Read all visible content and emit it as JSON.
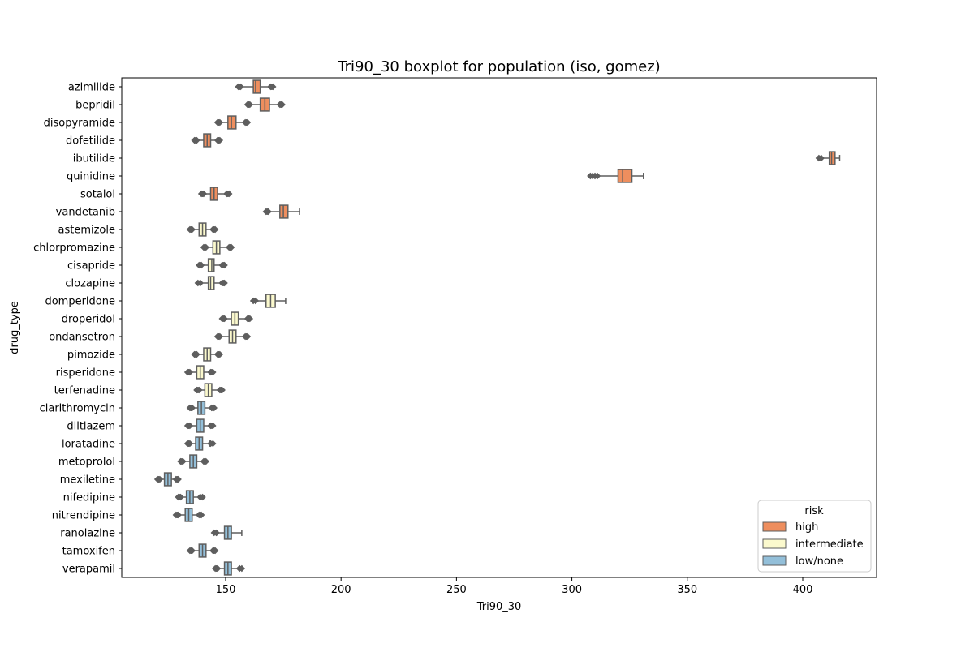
{
  "chart_data": {
    "type": "boxplot",
    "orientation": "horizontal",
    "title": "Tri90_30 boxplot for population (iso, gomez)",
    "xlabel": "Tri90_30",
    "ylabel": "drug_type",
    "xlim": [
      105,
      432
    ],
    "xticks": [
      150,
      200,
      250,
      300,
      350,
      400
    ],
    "grid": false,
    "legend": {
      "title": "risk",
      "placement": "lower right",
      "entries": [
        {
          "key": "high",
          "label": "high",
          "color": "#ee8e5e"
        },
        {
          "key": "intermediate",
          "label": "intermediate",
          "color": "#fbf9cd"
        },
        {
          "key": "low",
          "label": "low/none",
          "color": "#93bfd9"
        }
      ]
    },
    "series": [
      {
        "drug": "azimilide",
        "risk": "high",
        "whisker_low": 156,
        "q1": 162,
        "median": 163,
        "q3": 165,
        "whisker_high": 170,
        "outliers_low": [
          155.5,
          156.5
        ],
        "outliers_high": [
          169.5,
          170.5
        ]
      },
      {
        "drug": "bepridil",
        "risk": "high",
        "whisker_low": 160,
        "q1": 165,
        "median": 167,
        "q3": 169,
        "whisker_high": 174,
        "outliers_low": [
          159.5,
          160.5
        ],
        "outliers_high": [
          173.5,
          174.5
        ]
      },
      {
        "drug": "disopyramide",
        "risk": "high",
        "whisker_low": 147,
        "q1": 151,
        "median": 152.5,
        "q3": 154.5,
        "whisker_high": 159,
        "outliers_low": [
          146.5,
          147.5
        ],
        "outliers_high": [
          158.5,
          159.5
        ]
      },
      {
        "drug": "dofetilide",
        "risk": "high",
        "whisker_low": 137,
        "q1": 140.5,
        "median": 142,
        "q3": 143.5,
        "whisker_high": 147,
        "outliers_low": [
          136.5,
          137.5
        ],
        "outliers_high": [
          146.5,
          147.5
        ]
      },
      {
        "drug": "ibutilide",
        "risk": "high",
        "whisker_low": 408,
        "q1": 411.5,
        "median": 412.5,
        "q3": 414,
        "whisker_high": 416,
        "outliers_low": [
          407,
          408
        ],
        "outliers_high": []
      },
      {
        "drug": "quinidine",
        "risk": "high",
        "whisker_low": 311,
        "q1": 320,
        "median": 322,
        "q3": 326,
        "whisker_high": 331,
        "outliers_low": [
          308,
          309,
          310,
          311
        ],
        "outliers_high": []
      },
      {
        "drug": "sotalol",
        "risk": "high",
        "whisker_low": 140,
        "q1": 143.5,
        "median": 145,
        "q3": 146.5,
        "whisker_high": 151,
        "outliers_low": [
          139.5,
          140.5
        ],
        "outliers_high": [
          150.5,
          151.5
        ]
      },
      {
        "drug": "vandetanib",
        "risk": "high",
        "whisker_low": 168,
        "q1": 173.5,
        "median": 175,
        "q3": 177,
        "whisker_high": 182,
        "outliers_low": [
          167.5,
          168.5
        ],
        "outliers_high": []
      },
      {
        "drug": "astemizole",
        "risk": "intermediate",
        "whisker_low": 135,
        "q1": 138.5,
        "median": 140,
        "q3": 141.5,
        "whisker_high": 145,
        "outliers_low": [
          134.5,
          135.5
        ],
        "outliers_high": [
          144.5,
          145.5
        ]
      },
      {
        "drug": "chlorpromazine",
        "risk": "intermediate",
        "whisker_low": 141,
        "q1": 144.5,
        "median": 146,
        "q3": 147.5,
        "whisker_high": 152,
        "outliers_low": [
          140.5,
          141.5
        ],
        "outliers_high": [
          151.5,
          152.5
        ]
      },
      {
        "drug": "cisapride",
        "risk": "intermediate",
        "whisker_low": 139,
        "q1": 142.5,
        "median": 144,
        "q3": 145,
        "whisker_high": 149,
        "outliers_low": [
          138.5,
          139.5
        ],
        "outliers_high": [
          148.5,
          149.5
        ]
      },
      {
        "drug": "clozapine",
        "risk": "intermediate",
        "whisker_low": 139,
        "q1": 142.5,
        "median": 143.5,
        "q3": 145,
        "whisker_high": 149,
        "outliers_low": [
          138,
          139
        ],
        "outliers_high": [
          148.5,
          149.5
        ]
      },
      {
        "drug": "domperidone",
        "risk": "intermediate",
        "whisker_low": 163,
        "q1": 167.5,
        "median": 169.5,
        "q3": 171.5,
        "whisker_high": 176,
        "outliers_low": [
          162,
          163
        ],
        "outliers_high": []
      },
      {
        "drug": "droperidol",
        "risk": "intermediate",
        "whisker_low": 149,
        "q1": 152.5,
        "median": 154,
        "q3": 155.5,
        "whisker_high": 160,
        "outliers_low": [
          148.5,
          149.5
        ],
        "outliers_high": [
          159.5,
          160.5
        ]
      },
      {
        "drug": "ondansetron",
        "risk": "intermediate",
        "whisker_low": 147,
        "q1": 151.5,
        "median": 153,
        "q3": 154.5,
        "whisker_high": 159,
        "outliers_low": [
          146.5,
          147.5
        ],
        "outliers_high": [
          158.5,
          159.5
        ]
      },
      {
        "drug": "pimozide",
        "risk": "intermediate",
        "whisker_low": 137,
        "q1": 140.5,
        "median": 142,
        "q3": 143.5,
        "whisker_high": 147,
        "outliers_low": [
          136.5,
          137.5
        ],
        "outliers_high": [
          146.5,
          147.5
        ]
      },
      {
        "drug": "risperidone",
        "risk": "intermediate",
        "whisker_low": 134,
        "q1": 137.5,
        "median": 139,
        "q3": 140.5,
        "whisker_high": 144,
        "outliers_low": [
          133.5,
          134.5
        ],
        "outliers_high": [
          143.5,
          144.5
        ]
      },
      {
        "drug": "terfenadine",
        "risk": "intermediate",
        "whisker_low": 138,
        "q1": 141,
        "median": 142.5,
        "q3": 144,
        "whisker_high": 148,
        "outliers_low": [
          137.5,
          138.5
        ],
        "outliers_high": [
          147.5,
          148.5
        ]
      },
      {
        "drug": "clarithromycin",
        "risk": "low",
        "whisker_low": 135,
        "q1": 138,
        "median": 139.5,
        "q3": 141,
        "whisker_high": 144,
        "outliers_low": [
          134.5,
          135.5
        ],
        "outliers_high": [
          144,
          145
        ]
      },
      {
        "drug": "diltiazem",
        "risk": "low",
        "whisker_low": 134,
        "q1": 137.5,
        "median": 139,
        "q3": 140.5,
        "whisker_high": 144,
        "outliers_low": [
          133.5,
          134.5
        ],
        "outliers_high": [
          143.5,
          144.5
        ]
      },
      {
        "drug": "loratadine",
        "risk": "low",
        "whisker_low": 134,
        "q1": 137,
        "median": 138.5,
        "q3": 140,
        "whisker_high": 143,
        "outliers_low": [
          133.5,
          134.5
        ],
        "outliers_high": [
          143.5,
          144.5
        ]
      },
      {
        "drug": "metoprolol",
        "risk": "low",
        "whisker_low": 131,
        "q1": 134.5,
        "median": 136,
        "q3": 137.5,
        "whisker_high": 141,
        "outliers_low": [
          130.5,
          131.5
        ],
        "outliers_high": [
          140.5,
          141.5
        ]
      },
      {
        "drug": "mexiletine",
        "risk": "low",
        "whisker_low": 121,
        "q1": 123.5,
        "median": 125,
        "q3": 126.5,
        "whisker_high": 129,
        "outliers_low": [
          120.5,
          121.5
        ],
        "outliers_high": [
          128.5,
          129.5
        ]
      },
      {
        "drug": "nifedipine",
        "risk": "low",
        "whisker_low": 130,
        "q1": 133,
        "median": 134.5,
        "q3": 136,
        "whisker_high": 139,
        "outliers_low": [
          129.5,
          130.5
        ],
        "outliers_high": [
          139,
          140
        ]
      },
      {
        "drug": "nitrendipine",
        "risk": "low",
        "whisker_low": 129,
        "q1": 132.5,
        "median": 134,
        "q3": 135.5,
        "whisker_high": 139,
        "outliers_low": [
          128.5,
          129.5
        ],
        "outliers_high": [
          138.5,
          139.5
        ]
      },
      {
        "drug": "ranolazine",
        "risk": "low",
        "whisker_low": 146,
        "q1": 149.5,
        "median": 151,
        "q3": 152.5,
        "whisker_high": 157,
        "outliers_low": [
          145,
          146
        ],
        "outliers_high": []
      },
      {
        "drug": "tamoxifen",
        "risk": "low",
        "whisker_low": 135,
        "q1": 138.5,
        "median": 140,
        "q3": 141.5,
        "whisker_high": 145,
        "outliers_low": [
          134.5,
          135.5
        ],
        "outliers_high": [
          144.5,
          145.5
        ]
      },
      {
        "drug": "verapamil",
        "risk": "low",
        "whisker_low": 146,
        "q1": 149.5,
        "median": 151,
        "q3": 152.5,
        "whisker_high": 156,
        "outliers_low": [
          145.5,
          146.5
        ],
        "outliers_high": [
          156,
          157
        ]
      }
    ]
  }
}
